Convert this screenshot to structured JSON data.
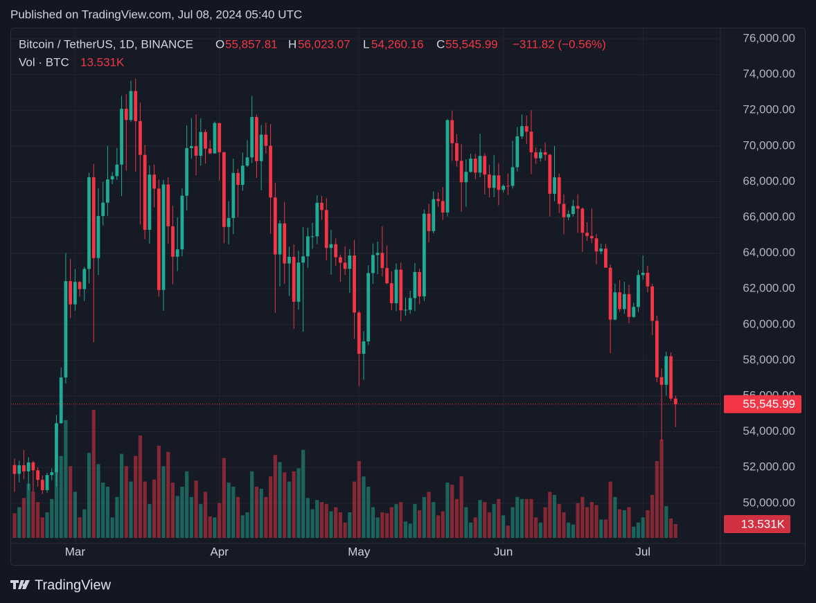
{
  "published": "Published on TradingView.com, Jul 08, 2024 05:40 UTC",
  "brand": "TradingView",
  "chart_data": {
    "type": "candlestick",
    "symbol": "Bitcoin / TetherUS, 1D, BINANCE",
    "ohlc_prefixes": [
      "O",
      "H",
      "L",
      "C"
    ],
    "change": "−311.82 (−0.56%)",
    "volume_title": "Vol · BTC",
    "last": {
      "open": "55,857.81",
      "high": "56,023.07",
      "low": "54,260.16",
      "close": "55,545.99",
      "volume": "13.531K"
    },
    "up_color": "#22ab94",
    "down_color": "#f23645",
    "grid": true,
    "categories": [
      null,
      null,
      null,
      null,
      null,
      null,
      null,
      null,
      null,
      null,
      null,
      null,
      null,
      "Mar",
      null,
      null,
      null,
      null,
      null,
      null,
      null,
      null,
      null,
      null,
      null,
      null,
      null,
      null,
      null,
      null,
      null,
      null,
      null,
      null,
      null,
      null,
      null,
      null,
      null,
      null,
      null,
      null,
      null,
      null,
      "Apr",
      null,
      null,
      null,
      null,
      null,
      null,
      null,
      null,
      null,
      null,
      null,
      null,
      null,
      null,
      null,
      null,
      null,
      null,
      null,
      null,
      null,
      null,
      null,
      null,
      null,
      null,
      null,
      null,
      null,
      "May",
      null,
      null,
      null,
      null,
      null,
      null,
      null,
      null,
      null,
      null,
      null,
      null,
      null,
      null,
      null,
      null,
      null,
      null,
      null,
      null,
      null,
      null,
      null,
      null,
      null,
      null,
      null,
      null,
      null,
      null,
      "Jun",
      null,
      null,
      null,
      null,
      null,
      null,
      null,
      null,
      null,
      null,
      null,
      null,
      null,
      null,
      null,
      null,
      null,
      null,
      null,
      null,
      null,
      null,
      null,
      null,
      null,
      null,
      null,
      null,
      null,
      "Jul",
      null,
      null,
      null,
      null,
      null,
      null,
      null
    ],
    "open": [
      52137,
      51643,
      52122,
      51779,
      52284,
      51839,
      51304,
      50731,
      51571,
      51733,
      54476,
      57037,
      62432,
      61130,
      62387,
      61987,
      63113,
      68245,
      63724,
      66074,
      66823,
      68124,
      68313,
      68955,
      72078,
      71452,
      73072,
      71388,
      69499,
      65300,
      68393,
      67609,
      61937,
      67840,
      65501,
      63796,
      64209,
      67211,
      69880,
      69988,
      69451,
      70780,
      69850,
      69582,
      71280,
      69649,
      65463,
      65963,
      68487,
      67820,
      68896,
      69360,
      71620,
      69146,
      70631,
      70006,
      67116,
      63924,
      65661,
      63420,
      63793,
      61277,
      63470,
      63818,
      64940,
      64941,
      66819,
      66414,
      64289,
      64498,
      63770,
      63461,
      63118,
      63866,
      60672,
      58364,
      59060,
      62882,
      63892,
      64012,
      63165,
      62312,
      61193,
      63074,
      60799,
      60825,
      61483,
      62940,
      61577,
      66206,
      65235,
      67024,
      66915,
      66274,
      71446,
      70148,
      69166,
      67969,
      68549,
      69290,
      68507,
      69436,
      68398,
      67652,
      68352,
      67540,
      67766,
      67765,
      68809,
      70537,
      71108,
      70799,
      69647,
      69308,
      69648,
      69508,
      67321,
      68241,
      66756,
      66011,
      66191,
      66639,
      66490,
      65140,
      64960,
      64828,
      64096,
      64252,
      63180,
      60277,
      61806,
      60864,
      61706,
      60427,
      60986,
      62772,
      62899,
      62135,
      60208,
      57050,
      56628,
      58230,
      55857.81
    ],
    "high": [
      52488,
      52377,
      52985,
      52570,
      52366,
      52018,
      51548,
      51698,
      51950,
      54938,
      57588,
      64000,
      63676,
      63114,
      62433,
      63231,
      68499,
      69000,
      67641,
      67980,
      69990,
      68541,
      69887,
      72800,
      72890,
      73650,
      73777,
      72419,
      70043,
      68904,
      68956,
      68124,
      68100,
      68240,
      66649,
      65999,
      67624,
      71150,
      71561,
      71769,
      71552,
      70916,
      70321,
      71366,
      71288,
      69674,
      66903,
      69291,
      68725,
      69629,
      70326,
      72797,
      71758,
      71172,
      71305,
      71227,
      67931,
      65840,
      66867,
      64365,
      64486,
      64125,
      65450,
      65419,
      65695,
      67233,
      67199,
      67075,
      65297,
      64820,
      63923,
      64370,
      64228,
      64734,
      60780,
      59625,
      63320,
      64545,
      64646,
      65500,
      64422,
      62985,
      63421,
      63469,
      61515,
      61888,
      63450,
      63118,
      66444,
      66752,
      67451,
      67400,
      67700,
      71515,
      71979,
      70666,
      70096,
      69250,
      69563,
      69562,
      70687,
      69591,
      68935,
      69500,
      69044,
      67857,
      68460,
      70288,
      71063,
      71758,
      71700,
      71997,
      69914,
      69850,
      70195,
      69556,
      69999,
      68449,
      67294,
      66402,
      66983,
      67298,
      66556,
      65727,
      66482,
      65066,
      64525,
      64520,
      63369,
      62292,
      62487,
      62389,
      62225,
      61224,
      63058,
      63861,
      63288,
      62285,
      60498,
      57546,
      58475,
      58449,
      56023.07
    ],
    "low": [
      50625,
      51163,
      51333,
      50733,
      50625,
      50930,
      50521,
      50585,
      51281,
      50931,
      54450,
      56691,
      60364,
      60777,
      61561,
      61320,
      62300,
      59005,
      62779,
      65551,
      66082,
      67861,
      68094,
      67194,
      68620,
      71333,
      68555,
      65600,
      64780,
      64533,
      66565,
      61555,
      60775,
      64529,
      62260,
      63000,
      63820,
      66385,
      69280,
      68359,
      68903,
      69009,
      69540,
      69562,
      68062,
      64550,
      64493,
      65064,
      66011,
      67491,
      68824,
      69043,
      68210,
      67518,
      69567,
      65086,
      60660,
      62134,
      62274,
      61600,
      59768,
      60833,
      59600,
      63172,
      64237,
      64500,
      65864,
      63589,
      62794,
      63297,
      62391,
      62781,
      61765,
      59191,
      56552,
      56911,
      58848,
      62274,
      62822,
      62700,
      62261,
      60800,
      60750,
      60187,
      60487,
      60610,
      60749,
      61142,
      61319,
      64602,
      65106,
      66600,
      65857,
      66060,
      69162,
      68842,
      66312,
      66600,
      68500,
      68128,
      68250,
      67277,
      67124,
      67128,
      66670,
      67386,
      67257,
      67612,
      68567,
      70383,
      70117,
      68420,
      69000,
      69130,
      69172,
      66051,
      66902,
      66251,
      65056,
      65848,
      66043,
      65130,
      64066,
      64693,
      64560,
      63379,
      63943,
      63209,
      58402,
      60239,
      60712,
      60606,
      60063,
      60383,
      60712,
      62497,
      61806,
      59400,
      56771,
      53485,
      56018,
      55724,
      54260.16
    ],
    "close": [
      51643,
      52122,
      51779,
      52284,
      51839,
      51304,
      50731,
      51571,
      51733,
      54476,
      57037,
      62432,
      61130,
      62387,
      61987,
      63113,
      68245,
      63724,
      66074,
      66823,
      68124,
      68313,
      68955,
      72078,
      71452,
      73072,
      71388,
      69499,
      65300,
      68393,
      67609,
      61937,
      67840,
      65501,
      63796,
      64209,
      67211,
      69880,
      69988,
      69451,
      70780,
      69850,
      69582,
      71280,
      69649,
      65463,
      65963,
      68487,
      67820,
      68896,
      69360,
      71620,
      69146,
      70631,
      70006,
      67116,
      63924,
      65661,
      63420,
      63793,
      61277,
      63470,
      63818,
      64940,
      64941,
      66819,
      66414,
      64289,
      64498,
      63770,
      63461,
      63118,
      63866,
      60672,
      58364,
      59060,
      62882,
      63892,
      64012,
      63165,
      62312,
      61193,
      63074,
      60799,
      60825,
      61483,
      62940,
      61577,
      66206,
      65235,
      67024,
      66915,
      66274,
      71446,
      70148,
      69166,
      67969,
      68549,
      69290,
      68507,
      69436,
      68398,
      67652,
      68352,
      67540,
      67766,
      67765,
      68809,
      70537,
      71108,
      70799,
      69647,
      69308,
      69648,
      69508,
      67321,
      68241,
      66756,
      66011,
      66191,
      66639,
      66490,
      65140,
      64960,
      64828,
      64096,
      64252,
      63180,
      60277,
      61806,
      60864,
      61706,
      60427,
      60986,
      62772,
      62899,
      62135,
      60208,
      57050,
      56628,
      58230,
      55857.81,
      55545.99
    ],
    "volume": [
      24000,
      30000,
      39000,
      53000,
      45000,
      35000,
      20000,
      25000,
      38000,
      70000,
      80000,
      115000,
      70000,
      45000,
      20000,
      28000,
      83000,
      125000,
      72000,
      54000,
      50000,
      20000,
      40000,
      82000,
      70000,
      55000,
      80000,
      100000,
      55000,
      33000,
      57000,
      90000,
      70000,
      84000,
      54000,
      41000,
      50000,
      65000,
      40000,
      56000,
      33000,
      45000,
      21000,
      20000,
      34000,
      78000,
      54000,
      50000,
      40000,
      22000,
      25000,
      65000,
      50000,
      48000,
      40000,
      60000,
      81000,
      74000,
      64000,
      55000,
      65000,
      68000,
      86000,
      39000,
      28000,
      37000,
      35000,
      33000,
      26000,
      30000,
      25000,
      15000,
      25000,
      55000,
      75000,
      60000,
      50000,
      30000,
      20000,
      25000,
      24000,
      30000,
      33000,
      35000,
      16000,
      14000,
      33000,
      27000,
      40000,
      45000,
      35000,
      22000,
      26000,
      54000,
      52000,
      38000,
      60000,
      30000,
      15000,
      20000,
      37000,
      35000,
      25000,
      33000,
      38000,
      22000,
      12000,
      30000,
      40000,
      38000,
      38000,
      38000,
      20000,
      15000,
      30000,
      45000,
      42000,
      33000,
      25000,
      15000,
      13000,
      34000,
      40000,
      30000,
      35000,
      32000,
      18000,
      18000,
      55000,
      40000,
      28000,
      27000,
      30000,
      11000,
      15000,
      20000,
      27000,
      42000,
      75000,
      96000,
      31000,
      19000,
      13531
    ],
    "ylim": [
      47744,
      76620
    ],
    "yticks": [
      {
        "value": 50000,
        "label": "50,000.00"
      },
      {
        "value": 52000,
        "label": "52,000.00"
      },
      {
        "value": 54000,
        "label": "54,000.00"
      },
      {
        "value": 56000,
        "label": "56,000.00"
      },
      {
        "value": 58000,
        "label": "58,000.00"
      },
      {
        "value": 60000,
        "label": "60,000.00"
      },
      {
        "value": 62000,
        "label": "62,000.00"
      },
      {
        "value": 64000,
        "label": "64,000.00"
      },
      {
        "value": 66000,
        "label": "66,000.00"
      },
      {
        "value": 68000,
        "label": "68,000.00"
      },
      {
        "value": 70000,
        "label": "70,000.00"
      },
      {
        "value": 72000,
        "label": "72,000.00"
      },
      {
        "value": 74000,
        "label": "74,000.00"
      },
      {
        "value": 76000,
        "label": "76,000.00"
      }
    ]
  }
}
